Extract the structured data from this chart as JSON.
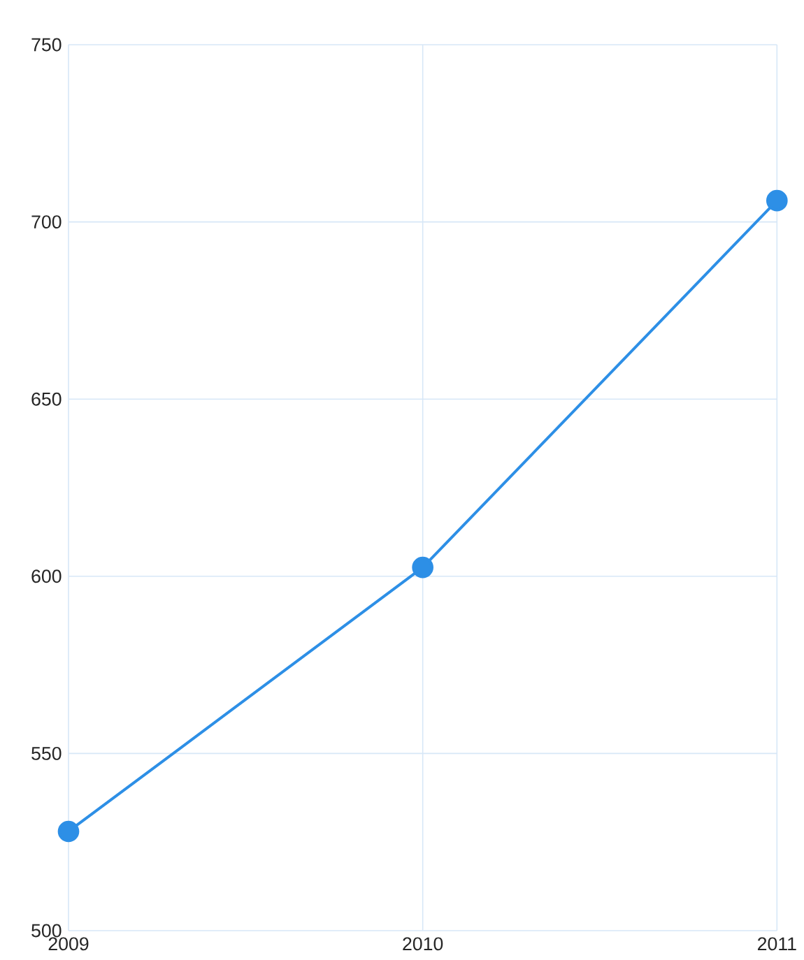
{
  "chart_data": {
    "type": "line",
    "categories": [
      "2009",
      "2010",
      "2011"
    ],
    "series": [
      {
        "color": "#2d8fe6",
        "values": [
          528,
          602.5,
          706
        ]
      }
    ],
    "ylim": [
      500,
      750
    ],
    "yticks": [
      500,
      550,
      600,
      650,
      700,
      750
    ],
    "grid": true,
    "marker": "circle",
    "line_style": "solid"
  }
}
